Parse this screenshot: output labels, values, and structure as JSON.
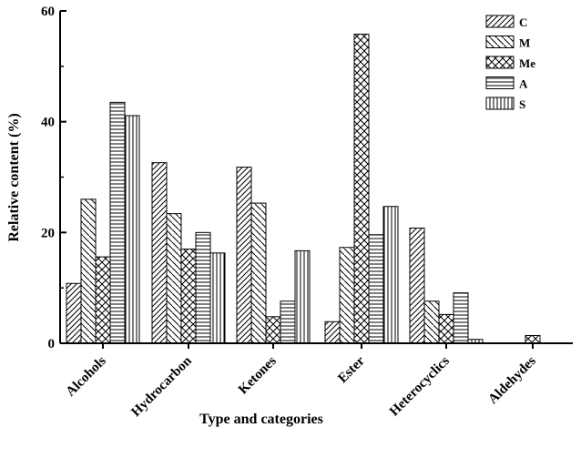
{
  "chart_data": {
    "type": "bar",
    "categories": [
      "Alcohols",
      "Hydrocarbon",
      "Ketones",
      "Ester",
      "Heterocyclics",
      "Aldehydes"
    ],
    "series": [
      {
        "name": "C",
        "pattern": "diag-up",
        "values": [
          10.8,
          32.6,
          31.8,
          3.9,
          20.8,
          0
        ]
      },
      {
        "name": "M",
        "pattern": "diag-down",
        "values": [
          26.0,
          23.4,
          25.3,
          17.3,
          7.6,
          0
        ]
      },
      {
        "name": "Me",
        "pattern": "cross",
        "values": [
          15.6,
          17.0,
          4.8,
          55.8,
          5.2,
          1.4
        ]
      },
      {
        "name": "A",
        "pattern": "horiz",
        "values": [
          43.5,
          20.0,
          7.6,
          19.6,
          9.1,
          0
        ]
      },
      {
        "name": "S",
        "pattern": "vert",
        "values": [
          41.1,
          16.3,
          16.7,
          24.7,
          0.7,
          0
        ]
      }
    ],
    "xlabel": "Type and categories",
    "ylabel": "Relative content  (%)",
    "ylim": [
      0,
      60
    ],
    "yticks": [
      0,
      20,
      40,
      60
    ],
    "grid": false,
    "legend_position": "top-right",
    "colors": {
      "stroke": "#000000",
      "fill": "#ffffff"
    }
  }
}
